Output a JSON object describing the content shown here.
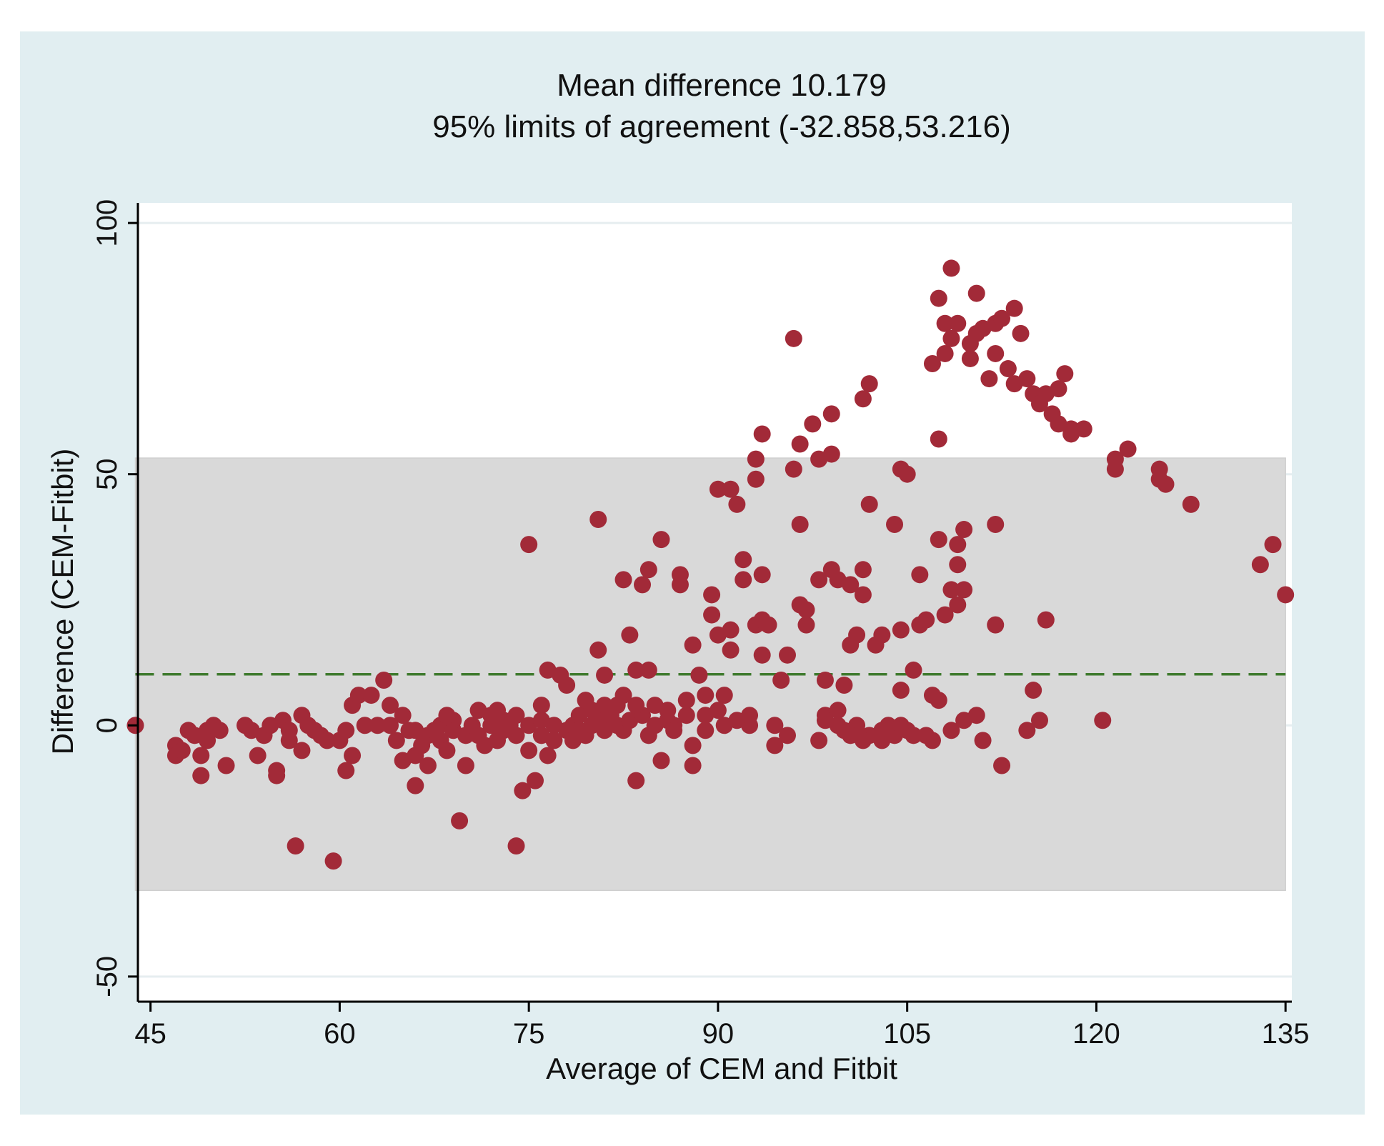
{
  "chart_data": {
    "type": "scatter",
    "title": [
      "Mean difference 10.179",
      "95% limits of agreement (-32.858,53.216)"
    ],
    "xlabel": "Average of CEM and Fitbit",
    "ylabel": "Difference (CEM-Fitbit)",
    "xlim": [
      44,
      135.5
    ],
    "ylim": [
      -55,
      104
    ],
    "xticks": [
      45,
      60,
      75,
      90,
      105,
      120,
      135
    ],
    "yticks": [
      -50,
      0,
      50,
      100
    ],
    "grid": true,
    "mean_difference": 10.179,
    "limits_of_agreement": [
      -32.858,
      53.216
    ],
    "colors": {
      "background": "#e1eef1",
      "plot_area": "#ffffff",
      "band": "#d9d9d9",
      "points": "#a22a38",
      "mean_line": "#3f7a2e",
      "grid": "#e6eef0"
    },
    "points": [
      [
        43.8,
        0
      ],
      [
        47,
        -4
      ],
      [
        47,
        -6
      ],
      [
        47.5,
        -5
      ],
      [
        48,
        -1
      ],
      [
        48.5,
        -2
      ],
      [
        49,
        -6
      ],
      [
        49,
        -10
      ],
      [
        49.5,
        -3
      ],
      [
        49.5,
        -1
      ],
      [
        50,
        0
      ],
      [
        50.5,
        -1
      ],
      [
        51,
        -8
      ],
      [
        52.5,
        0
      ],
      [
        53,
        -1
      ],
      [
        53.5,
        -6
      ],
      [
        54,
        -2
      ],
      [
        54.5,
        0
      ],
      [
        55,
        -9
      ],
      [
        55,
        -10
      ],
      [
        55.5,
        1
      ],
      [
        56,
        -1
      ],
      [
        56,
        -3
      ],
      [
        56.5,
        -24
      ],
      [
        57,
        2
      ],
      [
        57,
        -5
      ],
      [
        57.5,
        0
      ],
      [
        58,
        -1
      ],
      [
        58.5,
        -2
      ],
      [
        59,
        -3
      ],
      [
        59.5,
        -27
      ],
      [
        60,
        -3
      ],
      [
        60.5,
        -1
      ],
      [
        60.5,
        -9
      ],
      [
        61,
        4
      ],
      [
        61,
        -6
      ],
      [
        61.5,
        6
      ],
      [
        62,
        0
      ],
      [
        62.5,
        6
      ],
      [
        63,
        0
      ],
      [
        63.5,
        9
      ],
      [
        64,
        0
      ],
      [
        64,
        4
      ],
      [
        64.5,
        -3
      ],
      [
        65,
        2
      ],
      [
        65,
        -7
      ],
      [
        65.5,
        -1
      ],
      [
        66,
        -6
      ],
      [
        66,
        -12
      ],
      [
        66.5,
        -4
      ],
      [
        67,
        -2
      ],
      [
        67,
        -8
      ],
      [
        67.5,
        -1
      ],
      [
        68,
        0
      ],
      [
        68,
        -3
      ],
      [
        68.5,
        -5
      ],
      [
        69,
        -1
      ],
      [
        69,
        1
      ],
      [
        69.5,
        -19
      ],
      [
        70,
        -2
      ],
      [
        70,
        -8
      ],
      [
        70.5,
        0
      ],
      [
        71,
        -2
      ],
      [
        71.5,
        -4
      ],
      [
        72,
        0
      ],
      [
        72,
        2
      ],
      [
        72.5,
        -3
      ],
      [
        73,
        -1
      ],
      [
        73,
        1
      ],
      [
        73.5,
        0
      ],
      [
        74,
        -2
      ],
      [
        74,
        2
      ],
      [
        74,
        -24
      ],
      [
        74.5,
        -13
      ],
      [
        75,
        0
      ],
      [
        75,
        -5
      ],
      [
        75,
        36
      ],
      [
        75.5,
        -11
      ],
      [
        76,
        -2
      ],
      [
        76,
        1
      ],
      [
        76.5,
        -6
      ],
      [
        76.5,
        11
      ],
      [
        77,
        0
      ],
      [
        77,
        -3
      ],
      [
        77.5,
        10
      ],
      [
        78,
        -1
      ],
      [
        78,
        8
      ],
      [
        78.5,
        0
      ],
      [
        79,
        -1
      ],
      [
        79,
        2
      ],
      [
        79.5,
        -2
      ],
      [
        80,
        0
      ],
      [
        80,
        3
      ],
      [
        80.5,
        1
      ],
      [
        80.5,
        15
      ],
      [
        80.5,
        41
      ],
      [
        81,
        -1
      ],
      [
        81,
        10
      ],
      [
        81.5,
        2
      ],
      [
        82,
        0
      ],
      [
        82,
        4
      ],
      [
        82.5,
        -1
      ],
      [
        82.5,
        29
      ],
      [
        83,
        1
      ],
      [
        83,
        18
      ],
      [
        83.5,
        -11
      ],
      [
        83.5,
        11
      ],
      [
        84,
        28
      ],
      [
        84,
        2
      ],
      [
        84.5,
        31
      ],
      [
        84.5,
        11
      ],
      [
        85,
        0
      ],
      [
        85,
        4
      ],
      [
        85.5,
        37
      ],
      [
        85.5,
        -7
      ],
      [
        86,
        1
      ],
      [
        86,
        3
      ],
      [
        86.5,
        0
      ],
      [
        87,
        28
      ],
      [
        87,
        30
      ],
      [
        87.5,
        2
      ],
      [
        88,
        16
      ],
      [
        88,
        -4
      ],
      [
        88,
        -8
      ],
      [
        88.5,
        10
      ],
      [
        89,
        6
      ],
      [
        89,
        2
      ],
      [
        89.5,
        26
      ],
      [
        89.5,
        22
      ],
      [
        90,
        18
      ],
      [
        90,
        47
      ],
      [
        90.5,
        0
      ],
      [
        90.5,
        6
      ],
      [
        91,
        47
      ],
      [
        91,
        19
      ],
      [
        91,
        15
      ],
      [
        91.5,
        44
      ],
      [
        92,
        33
      ],
      [
        92,
        29
      ],
      [
        92.5,
        0
      ],
      [
        93,
        49
      ],
      [
        93,
        53
      ],
      [
        93,
        20
      ],
      [
        93.5,
        58
      ],
      [
        93.5,
        14
      ],
      [
        93.5,
        21
      ],
      [
        93.5,
        30
      ],
      [
        94,
        20
      ],
      [
        94.5,
        -4
      ],
      [
        94.5,
        0
      ],
      [
        95,
        9
      ],
      [
        95.5,
        14
      ],
      [
        95.5,
        -2
      ],
      [
        96,
        77
      ],
      [
        96,
        51
      ],
      [
        96.5,
        56
      ],
      [
        96.5,
        40
      ],
      [
        96.5,
        24
      ],
      [
        97,
        20
      ],
      [
        97,
        23
      ],
      [
        97.5,
        60
      ],
      [
        98,
        53
      ],
      [
        98,
        29
      ],
      [
        98,
        -3
      ],
      [
        98.5,
        2
      ],
      [
        98.5,
        9
      ],
      [
        99,
        31
      ],
      [
        99,
        62
      ],
      [
        99,
        54
      ],
      [
        99.5,
        0
      ],
      [
        99.5,
        29
      ],
      [
        100,
        8
      ],
      [
        100,
        -1
      ],
      [
        100.5,
        16
      ],
      [
        100.5,
        28
      ],
      [
        101,
        18
      ],
      [
        101,
        0
      ],
      [
        101.5,
        65
      ],
      [
        101.5,
        31
      ],
      [
        101.5,
        26
      ],
      [
        102,
        68
      ],
      [
        102,
        44
      ],
      [
        102,
        -2
      ],
      [
        102.5,
        16
      ],
      [
        103,
        18
      ],
      [
        103,
        -3
      ],
      [
        103.5,
        0
      ],
      [
        104,
        40
      ],
      [
        104,
        -2
      ],
      [
        104.5,
        51
      ],
      [
        104.5,
        19
      ],
      [
        104.5,
        7
      ],
      [
        105,
        50
      ],
      [
        105,
        -1
      ],
      [
        105.5,
        11
      ],
      [
        106,
        30
      ],
      [
        106,
        20
      ],
      [
        106.5,
        21
      ],
      [
        106.5,
        -2
      ],
      [
        107,
        6
      ],
      [
        107,
        72
      ],
      [
        107.5,
        85
      ],
      [
        107.5,
        57
      ],
      [
        107.5,
        37
      ],
      [
        107.5,
        5
      ],
      [
        108,
        74
      ],
      [
        108,
        80
      ],
      [
        108,
        22
      ],
      [
        108.5,
        91
      ],
      [
        108.5,
        77
      ],
      [
        108.5,
        27
      ],
      [
        108.5,
        -1
      ],
      [
        109,
        36
      ],
      [
        109,
        32
      ],
      [
        109,
        24
      ],
      [
        109,
        80
      ],
      [
        109.5,
        39
      ],
      [
        109.5,
        27
      ],
      [
        110,
        76
      ],
      [
        110,
        73
      ],
      [
        110.5,
        86
      ],
      [
        110.5,
        78
      ],
      [
        111,
        79
      ],
      [
        111,
        -3
      ],
      [
        111.5,
        69
      ],
      [
        112,
        74
      ],
      [
        112,
        80
      ],
      [
        112,
        40
      ],
      [
        112,
        20
      ],
      [
        112.5,
        81
      ],
      [
        113,
        71
      ],
      [
        113.5,
        83
      ],
      [
        113.5,
        68
      ],
      [
        114,
        78
      ],
      [
        114.5,
        69
      ],
      [
        115,
        66
      ],
      [
        115,
        7
      ],
      [
        115.5,
        64
      ],
      [
        116,
        66
      ],
      [
        116,
        21
      ],
      [
        116.5,
        62
      ],
      [
        117,
        67
      ],
      [
        117,
        60
      ],
      [
        117.5,
        70
      ],
      [
        118,
        58
      ],
      [
        118,
        59
      ],
      [
        119,
        59
      ],
      [
        120.5,
        1
      ],
      [
        121.5,
        53
      ],
      [
        121.5,
        51
      ],
      [
        122.5,
        55
      ],
      [
        125,
        51
      ],
      [
        125,
        49
      ],
      [
        125.5,
        48
      ],
      [
        127.5,
        44
      ],
      [
        133,
        32
      ],
      [
        134,
        36
      ],
      [
        135,
        26
      ],
      [
        66,
        -1
      ],
      [
        68.5,
        2
      ],
      [
        71,
        3
      ],
      [
        72.5,
        3
      ],
      [
        76,
        4
      ],
      [
        78.5,
        -3
      ],
      [
        79.5,
        5
      ],
      [
        81,
        4
      ],
      [
        82.5,
        6
      ],
      [
        83.5,
        4
      ],
      [
        84.5,
        -2
      ],
      [
        86.5,
        -1
      ],
      [
        87.5,
        5
      ],
      [
        89,
        -1
      ],
      [
        90,
        3
      ],
      [
        91.5,
        1
      ],
      [
        92.5,
        2
      ],
      [
        98.5,
        1
      ],
      [
        99.5,
        3
      ],
      [
        100.5,
        -2
      ],
      [
        101.5,
        -3
      ],
      [
        103,
        -1
      ],
      [
        104.5,
        0
      ],
      [
        105.5,
        -2
      ],
      [
        107,
        -3
      ],
      [
        109.5,
        1
      ],
      [
        110.5,
        2
      ],
      [
        112.5,
        -8
      ],
      [
        114.5,
        -1
      ],
      [
        115.5,
        1
      ]
    ]
  }
}
